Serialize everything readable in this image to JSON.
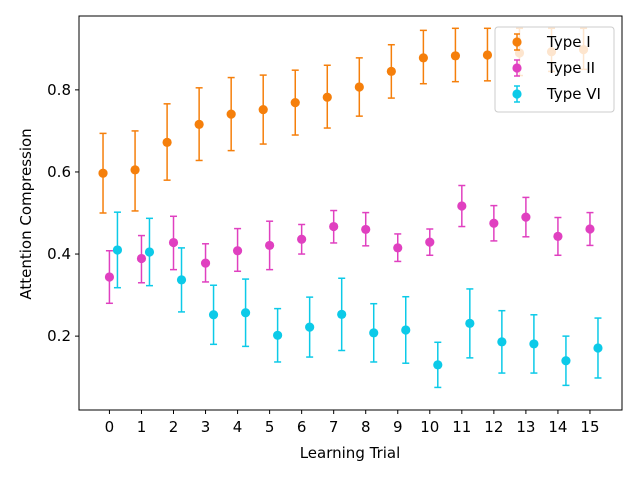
{
  "chart_data": {
    "type": "scatter",
    "title": "",
    "xlabel": "Learning Trial",
    "ylabel": "Attention Compression",
    "x_ticks": [
      "0",
      "1",
      "2",
      "3",
      "4",
      "5",
      "6",
      "7",
      "8",
      "9",
      "10",
      "11",
      "12",
      "13",
      "14",
      "15"
    ],
    "y_ticks": [
      "0.2",
      "0.4",
      "0.6",
      "0.8"
    ],
    "xlim": [
      -0.95,
      16.0
    ],
    "ylim": [
      0.02,
      0.98
    ],
    "grid": false,
    "legend_position": "top-right",
    "error_bars": true,
    "series": [
      {
        "name": "Type I",
        "color": "#f57f0b",
        "x_offset": -0.2,
        "values": [
          0.597,
          0.605,
          0.672,
          0.716,
          0.741,
          0.752,
          0.769,
          0.782,
          0.807,
          0.845,
          0.878,
          0.883,
          0.885,
          0.89,
          0.893,
          0.898
        ],
        "err_low": [
          0.5,
          0.505,
          0.58,
          0.628,
          0.652,
          0.668,
          0.69,
          0.707,
          0.736,
          0.78,
          0.815,
          0.82,
          0.822,
          0.835,
          0.845,
          0.85
        ],
        "err_high": [
          0.694,
          0.7,
          0.766,
          0.805,
          0.83,
          0.836,
          0.848,
          0.86,
          0.878,
          0.91,
          0.945,
          0.95,
          0.95,
          0.95,
          0.95,
          0.95
        ]
      },
      {
        "name": "Type II",
        "color": "#e040c0",
        "x_offset": 0.0,
        "values": [
          0.344,
          0.389,
          0.428,
          0.378,
          0.408,
          0.421,
          0.436,
          0.467,
          0.46,
          0.415,
          0.429,
          0.517,
          0.475,
          0.49,
          0.443,
          0.461
        ],
        "err_low": [
          0.28,
          0.33,
          0.362,
          0.332,
          0.358,
          0.362,
          0.4,
          0.427,
          0.42,
          0.382,
          0.397,
          0.467,
          0.432,
          0.442,
          0.397,
          0.421
        ],
        "err_high": [
          0.408,
          0.445,
          0.492,
          0.425,
          0.462,
          0.48,
          0.472,
          0.506,
          0.501,
          0.449,
          0.461,
          0.567,
          0.518,
          0.538,
          0.489,
          0.501
        ]
      },
      {
        "name": "Type VI",
        "color": "#0ccae8",
        "x_offset": 0.25,
        "values": [
          0.41,
          0.405,
          0.337,
          0.252,
          0.257,
          0.202,
          0.222,
          0.253,
          0.208,
          0.215,
          0.13,
          0.231,
          0.186,
          0.181,
          0.14,
          0.171
        ],
        "err_low": [
          0.318,
          0.323,
          0.259,
          0.18,
          0.175,
          0.137,
          0.149,
          0.165,
          0.137,
          0.134,
          0.075,
          0.147,
          0.11,
          0.11,
          0.08,
          0.098
        ],
        "err_high": [
          0.502,
          0.487,
          0.415,
          0.324,
          0.339,
          0.267,
          0.295,
          0.341,
          0.279,
          0.296,
          0.185,
          0.315,
          0.262,
          0.252,
          0.2,
          0.244
        ]
      }
    ]
  }
}
